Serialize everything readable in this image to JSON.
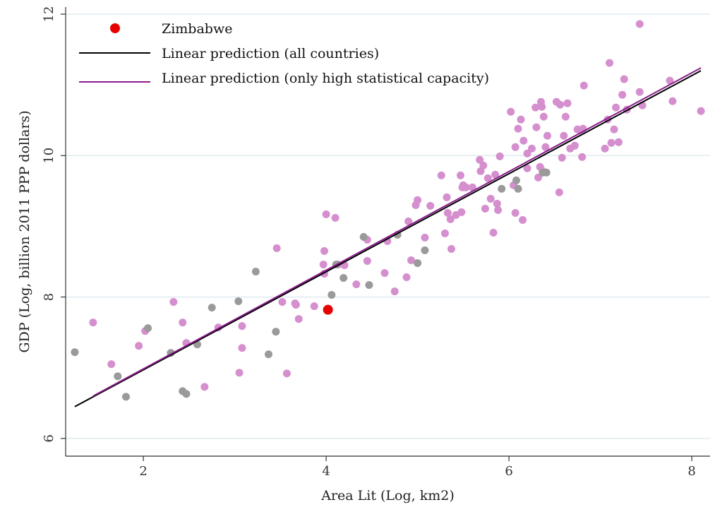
{
  "chart_data": {
    "type": "scatter",
    "xlabel": "Area Lit (Log, km2)",
    "ylabel": "GDP (Log, billion 2011 PPP dollars)",
    "xlim": [
      1.15,
      8.2
    ],
    "ylim": [
      5.75,
      12.1
    ],
    "xticks": [
      2,
      4,
      6,
      8
    ],
    "yticks": [
      6,
      8,
      10,
      12
    ],
    "grid": "horizontal",
    "legend_position": "top-left",
    "colors": {
      "high_capacity": "#d58fce",
      "low_capacity": "#9a9a9a",
      "highlight": "#e60000",
      "line_all": "#000000",
      "line_high": "#8a1c8a",
      "grid": "#dde9ee"
    },
    "legend": [
      {
        "label": "Zimbabwe",
        "kind": "marker",
        "color": "#e60000"
      },
      {
        "label": "Linear prediction (all countries)",
        "kind": "line",
        "color": "#000000"
      },
      {
        "label": "Linear prediction (only high statistical capacity)",
        "kind": "line",
        "color": "#8a1c8a"
      }
    ],
    "highlight": {
      "name": "Zimbabwe",
      "x": 4.02,
      "y": 7.82
    },
    "lines": [
      {
        "label": "Linear prediction (all countries)",
        "x": [
          1.25,
          8.1
        ],
        "y": [
          6.45,
          11.2
        ]
      },
      {
        "label": "Linear prediction (only high statistical capacity)",
        "x": [
          1.45,
          8.1
        ],
        "y": [
          6.6,
          11.24
        ]
      }
    ],
    "series": [
      {
        "group": "high_capacity",
        "points": [
          [
            1.45,
            7.64
          ],
          [
            1.65,
            7.05
          ],
          [
            1.95,
            7.31
          ],
          [
            2.02,
            7.52
          ],
          [
            2.33,
            7.93
          ],
          [
            2.43,
            7.64
          ],
          [
            2.47,
            7.35
          ],
          [
            2.67,
            6.73
          ],
          [
            2.82,
            7.57
          ],
          [
            3.05,
            6.93
          ],
          [
            3.08,
            7.59
          ],
          [
            3.08,
            7.28
          ],
          [
            3.46,
            8.69
          ],
          [
            3.52,
            7.93
          ],
          [
            3.57,
            6.92
          ],
          [
            3.66,
            7.91
          ],
          [
            3.67,
            7.89
          ],
          [
            3.7,
            7.69
          ],
          [
            3.87,
            7.87
          ],
          [
            3.97,
            8.46
          ],
          [
            3.98,
            8.33
          ],
          [
            3.98,
            8.65
          ],
          [
            4.0,
            9.17
          ],
          [
            4.1,
            9.12
          ],
          [
            4.13,
            8.46
          ],
          [
            4.2,
            8.45
          ],
          [
            4.33,
            8.18
          ],
          [
            4.45,
            8.81
          ],
          [
            4.45,
            8.51
          ],
          [
            4.64,
            8.34
          ],
          [
            4.67,
            8.79
          ],
          [
            4.75,
            8.08
          ],
          [
            4.88,
            8.28
          ],
          [
            4.9,
            9.07
          ],
          [
            4.93,
            8.52
          ],
          [
            4.98,
            9.3
          ],
          [
            5.0,
            9.37
          ],
          [
            5.08,
            8.84
          ],
          [
            5.14,
            9.29
          ],
          [
            5.26,
            9.72
          ],
          [
            5.3,
            8.9
          ],
          [
            5.32,
            9.41
          ],
          [
            5.33,
            9.19
          ],
          [
            5.36,
            9.1
          ],
          [
            5.37,
            8.68
          ],
          [
            5.42,
            9.16
          ],
          [
            5.47,
            9.72
          ],
          [
            5.48,
            9.2
          ],
          [
            5.49,
            9.55
          ],
          [
            5.5,
            9.58
          ],
          [
            5.53,
            9.55
          ],
          [
            5.6,
            9.55
          ],
          [
            5.68,
            9.94
          ],
          [
            5.69,
            9.78
          ],
          [
            5.72,
            9.86
          ],
          [
            5.74,
            9.25
          ],
          [
            5.77,
            9.68
          ],
          [
            5.8,
            9.39
          ],
          [
            5.83,
            8.91
          ],
          [
            5.85,
            9.73
          ],
          [
            5.87,
            9.32
          ],
          [
            5.88,
            9.23
          ],
          [
            5.9,
            9.99
          ],
          [
            6.02,
            10.62
          ],
          [
            6.05,
            9.58
          ],
          [
            6.07,
            9.19
          ],
          [
            6.07,
            10.12
          ],
          [
            6.1,
            10.38
          ],
          [
            6.13,
            10.51
          ],
          [
            6.15,
            9.09
          ],
          [
            6.16,
            10.21
          ],
          [
            6.2,
            9.82
          ],
          [
            6.2,
            10.03
          ],
          [
            6.25,
            10.1
          ],
          [
            6.29,
            10.68
          ],
          [
            6.3,
            10.4
          ],
          [
            6.32,
            9.69
          ],
          [
            6.34,
            9.84
          ],
          [
            6.35,
            10.76
          ],
          [
            6.36,
            10.69
          ],
          [
            6.37,
            9.78
          ],
          [
            6.38,
            10.55
          ],
          [
            6.4,
            10.12
          ],
          [
            6.42,
            10.28
          ],
          [
            6.52,
            10.76
          ],
          [
            6.55,
            9.48
          ],
          [
            6.56,
            10.72
          ],
          [
            6.58,
            9.97
          ],
          [
            6.6,
            10.28
          ],
          [
            6.62,
            10.55
          ],
          [
            6.64,
            10.74
          ],
          [
            6.67,
            10.1
          ],
          [
            6.72,
            10.14
          ],
          [
            6.75,
            10.37
          ],
          [
            6.78,
            10.36
          ],
          [
            6.8,
            9.98
          ],
          [
            6.81,
            10.38
          ],
          [
            6.82,
            10.99
          ],
          [
            7.05,
            10.1
          ],
          [
            7.08,
            10.51
          ],
          [
            7.1,
            11.31
          ],
          [
            7.12,
            10.18
          ],
          [
            7.15,
            10.37
          ],
          [
            7.17,
            10.68
          ],
          [
            7.2,
            10.19
          ],
          [
            7.24,
            10.86
          ],
          [
            7.26,
            11.08
          ],
          [
            7.29,
            10.65
          ],
          [
            7.43,
            11.86
          ],
          [
            7.43,
            10.9
          ],
          [
            7.46,
            10.71
          ],
          [
            7.76,
            11.06
          ],
          [
            7.79,
            10.77
          ],
          [
            8.1,
            10.63
          ]
        ]
      },
      {
        "group": "low_capacity",
        "points": [
          [
            1.25,
            7.22
          ],
          [
            1.72,
            6.88
          ],
          [
            1.81,
            6.59
          ],
          [
            2.05,
            7.56
          ],
          [
            2.3,
            7.21
          ],
          [
            2.43,
            6.67
          ],
          [
            2.47,
            6.63
          ],
          [
            2.59,
            7.33
          ],
          [
            2.75,
            7.85
          ],
          [
            3.04,
            7.94
          ],
          [
            3.23,
            8.36
          ],
          [
            3.37,
            7.19
          ],
          [
            3.45,
            7.51
          ],
          [
            4.06,
            8.03
          ],
          [
            4.11,
            8.46
          ],
          [
            4.19,
            8.27
          ],
          [
            4.41,
            8.85
          ],
          [
            4.47,
            8.17
          ],
          [
            4.78,
            8.88
          ],
          [
            5.0,
            8.48
          ],
          [
            5.08,
            8.66
          ],
          [
            5.92,
            9.53
          ],
          [
            6.08,
            9.65
          ],
          [
            6.1,
            9.53
          ],
          [
            6.37,
            9.76
          ],
          [
            6.41,
            9.76
          ]
        ]
      }
    ]
  }
}
